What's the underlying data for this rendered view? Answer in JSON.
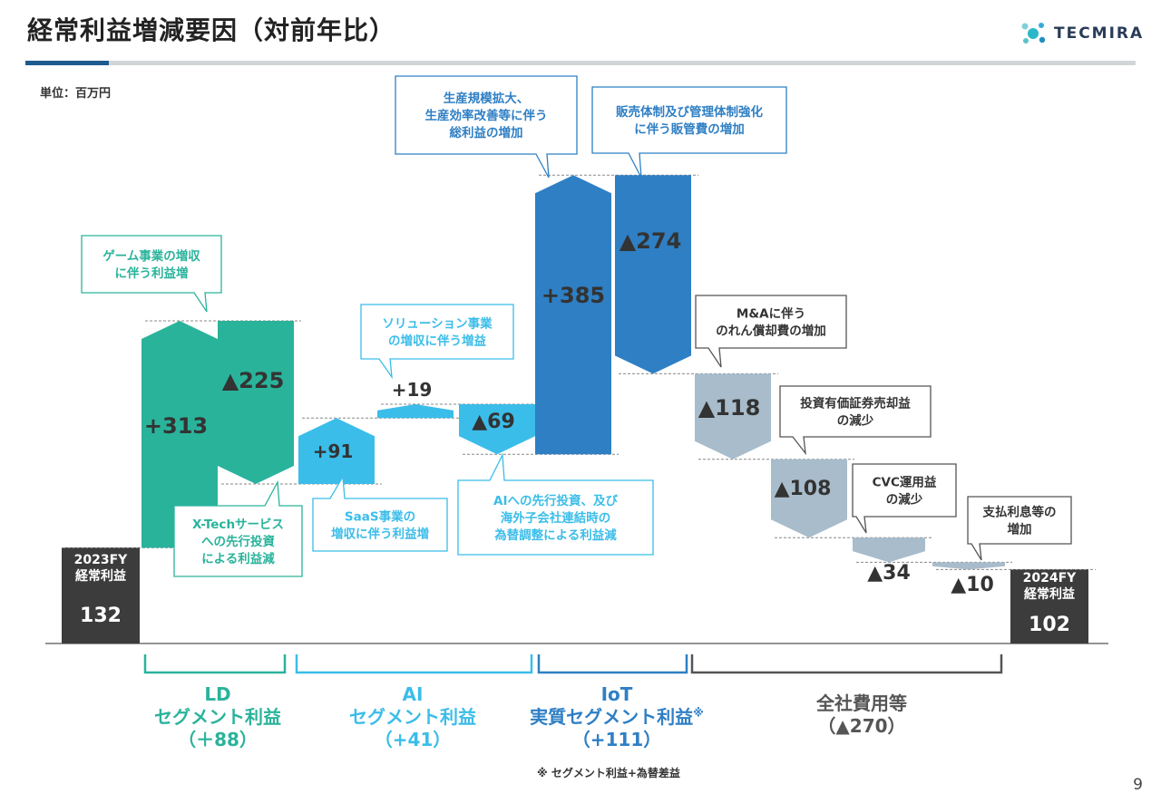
{
  "header": {
    "title": "経常利益増減要因（対前年比）",
    "logo_text": "TECMIRA",
    "unit": "単位：百万円",
    "page_number": "9"
  },
  "colors": {
    "ld": "#2ab39b",
    "ai": "#3bbde9",
    "iot": "#2f7fc4",
    "corp": "#a8bccb",
    "total": "#3c3c3c"
  },
  "chart_data": {
    "type": "waterfall",
    "title": "経常利益増減要因（対前年比）",
    "unit": "百万円",
    "bars": [
      {
        "id": "start",
        "kind": "total",
        "group": "total",
        "value": 132,
        "label_lines": [
          "2023FY",
          "経常利益"
        ],
        "value_label": "132"
      },
      {
        "id": "ld-game",
        "kind": "delta",
        "group": "ld",
        "value": 313,
        "value_label": "+313",
        "note": [
          "ゲーム事業の増収",
          "に伴う利益増"
        ]
      },
      {
        "id": "ld-xtech",
        "kind": "delta",
        "group": "ld",
        "value": -225,
        "value_label": "▲225",
        "note": [
          "X-Techサービス",
          "への先行投資",
          "による利益減"
        ]
      },
      {
        "id": "ai-saas",
        "kind": "delta",
        "group": "ai",
        "value": 91,
        "value_label": "+91",
        "note": [
          "SaaS事業の",
          "増収に伴う利益増"
        ]
      },
      {
        "id": "ai-solution",
        "kind": "delta",
        "group": "ai",
        "value": 19,
        "value_label": "+19",
        "note": [
          "ソリューション事業",
          "の増収に伴う増益"
        ]
      },
      {
        "id": "ai-invest",
        "kind": "delta",
        "group": "ai",
        "value": -69,
        "value_label": "▲69",
        "note": [
          "AIへの先行投資、及び",
          "海外子会社連結時の",
          "為替調整による利益減"
        ]
      },
      {
        "id": "iot-gross",
        "kind": "delta",
        "group": "iot",
        "value": 385,
        "value_label": "+385",
        "note": [
          "生産規模拡大、",
          "生産効率改善等に伴う",
          "総利益の増加"
        ]
      },
      {
        "id": "iot-sga",
        "kind": "delta",
        "group": "iot",
        "value": -274,
        "value_label": "▲274",
        "note": [
          "販売体制及び管理体制強化",
          "に伴う販管費の増加"
        ]
      },
      {
        "id": "corp-ma",
        "kind": "delta",
        "group": "corp",
        "value": -118,
        "value_label": "▲118",
        "note": [
          "M&Aに伴う",
          "のれん償却費の増加"
        ]
      },
      {
        "id": "corp-sec",
        "kind": "delta",
        "group": "corp",
        "value": -108,
        "value_label": "▲108",
        "note": [
          "投資有価証券売却益",
          "の減少"
        ]
      },
      {
        "id": "corp-cvc",
        "kind": "delta",
        "group": "corp",
        "value": -34,
        "value_label": "▲34",
        "note": [
          "CVC運用益",
          "の減少"
        ]
      },
      {
        "id": "corp-interest",
        "kind": "delta",
        "group": "corp",
        "value": -10,
        "value_label": "▲10",
        "note": [
          "支払利息等の",
          "増加"
        ]
      },
      {
        "id": "end",
        "kind": "total",
        "group": "total",
        "value": 102,
        "label_lines": [
          "2024FY",
          "経常利益"
        ],
        "value_label": "102"
      }
    ],
    "segments": [
      {
        "id": "ld",
        "name": "LD",
        "sub": "セグメント利益",
        "total_label": "（＋88）",
        "color": "#2ab39b"
      },
      {
        "id": "ai",
        "name": "AI",
        "sub": "セグメント利益",
        "total_label": "（+41）",
        "color": "#3bbde9"
      },
      {
        "id": "iot",
        "name": "IoT",
        "sub": "実質セグメント利益",
        "mark": "※",
        "total_label": "（+111）",
        "color": "#2f7fc4"
      },
      {
        "id": "corp",
        "name": "全社費用等",
        "sub": "",
        "total_label": "（▲270）",
        "color": "#555555"
      }
    ],
    "footnote": "※ セグメント利益+為替差益"
  }
}
